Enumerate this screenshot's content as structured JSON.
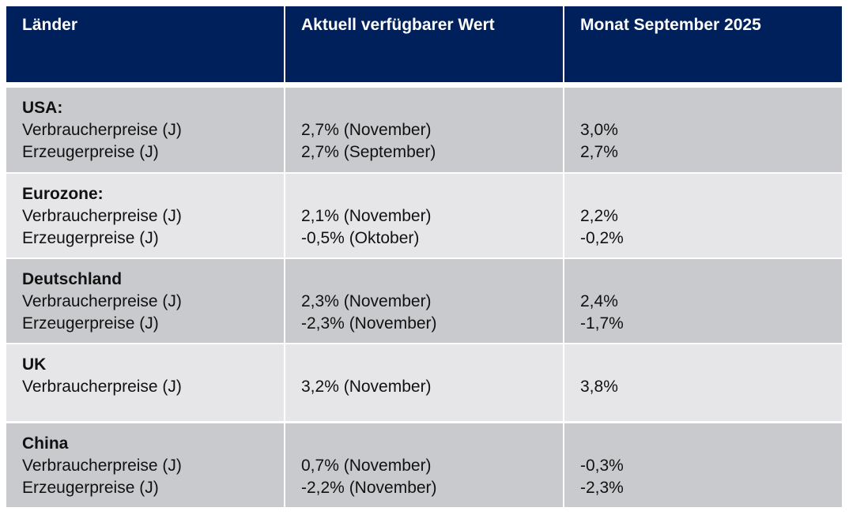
{
  "header": [
    "Länder",
    "Aktuell verfügbarer Wert",
    "Monat September 2025"
  ],
  "rows": [
    {
      "country": "USA:",
      "items": [
        {
          "label": "Verbraucherpreise (J)",
          "current": "2,7% (November)",
          "september": "3,0%"
        },
        {
          "label": "Erzeugerpreise (J)",
          "current": "2,7% (September)",
          "september": "2,7%"
        }
      ]
    },
    {
      "country": "Eurozone:",
      "items": [
        {
          "label": "Verbraucherpreise (J)",
          "current": "2,1% (November)",
          "september": "2,2%"
        },
        {
          "label": "Erzeugerpreise (J)",
          "current": "-0,5% (Oktober)",
          "september": "-0,2%"
        }
      ]
    },
    {
      "country": "Deutschland",
      "items": [
        {
          "label": "Verbraucherpreise (J)",
          "current": "2,3% (November)",
          "september": "2,4%"
        },
        {
          "label": "Erzeugerpreise (J)",
          "current": "-2,3% (November)",
          "september": "-1,7%"
        }
      ]
    },
    {
      "country": "UK",
      "items": [
        {
          "label": "Verbraucherpreise (J)",
          "current": "3,2% (November)",
          "september": "3,8%"
        }
      ]
    },
    {
      "country": "China",
      "items": [
        {
          "label": "Verbraucherpreise (J)",
          "current": "0,7% (November)",
          "september": "-0,3%"
        },
        {
          "label": "Erzeugerpreise (J)",
          "current": "-2,2% (November)",
          "september": "-2,3%"
        }
      ]
    }
  ]
}
